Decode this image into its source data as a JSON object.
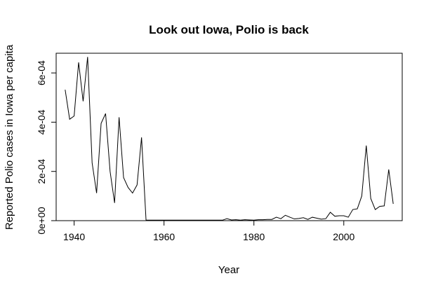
{
  "chart_data": {
    "type": "line",
    "title": "Look out Iowa, Polio is back",
    "xlabel": "Year",
    "ylabel": "Reported Polio cases in Iowa per capita",
    "xlim": [
      1936,
      2013
    ],
    "ylim": [
      0,
      0.00068
    ],
    "x_ticks": [
      1940,
      1960,
      1980,
      2000
    ],
    "x_tick_labels": [
      "1940",
      "1960",
      "1980",
      "2000"
    ],
    "y_ticks": [
      0,
      0.0002,
      0.0004,
      0.0006
    ],
    "y_tick_labels": [
      "0e+00",
      "2e-04",
      "4e-04",
      "6e-04"
    ],
    "grid": false,
    "legend": "none",
    "line_color": "#000000",
    "series": [
      {
        "x": [
          1938,
          1939,
          1940,
          1941,
          1942,
          1943,
          1944,
          1945,
          1946,
          1947,
          1948,
          1949,
          1950,
          1951,
          1952,
          1953,
          1954,
          1955,
          1956,
          1957,
          1958,
          1959,
          1960,
          1961,
          1962,
          1963,
          1964,
          1965,
          1966,
          1967,
          1968,
          1969,
          1970,
          1971,
          1972,
          1973,
          1974,
          1975,
          1976,
          1977,
          1978,
          1979,
          1980,
          1981,
          1982,
          1983,
          1984,
          1985,
          1986,
          1987,
          1988,
          1989,
          1990,
          1991,
          1992,
          1993,
          1994,
          1995,
          1996,
          1997,
          1998,
          1999,
          2000,
          2001,
          2002,
          2003,
          2004,
          2005,
          2006,
          2007,
          2008,
          2009,
          2010,
          2011
        ],
        "y": [
          0.000532,
          0.000412,
          0.000425,
          0.000643,
          0.000485,
          0.000665,
          0.000235,
          0.000112,
          0.000395,
          0.000435,
          0.0002,
          7.2e-05,
          0.00042,
          0.000175,
          0.000135,
          0.000112,
          0.000145,
          0.000338,
          2e-06,
          2e-06,
          2e-06,
          2e-06,
          2e-06,
          2e-06,
          2e-06,
          2e-06,
          2e-06,
          2e-06,
          2e-06,
          2e-06,
          2e-06,
          2e-06,
          2e-06,
          2e-06,
          2e-06,
          2e-06,
          8e-06,
          3e-06,
          4e-06,
          2e-06,
          4e-06,
          3e-06,
          2e-06,
          4e-06,
          4e-06,
          5e-06,
          5e-06,
          1.4e-05,
          8e-06,
          2.2e-05,
          1.4e-05,
          7e-06,
          9e-06,
          1.2e-05,
          5e-06,
          1.4e-05,
          1e-05,
          6e-06,
          8e-06,
          3.4e-05,
          1.8e-05,
          2e-05,
          2e-05,
          1.4e-05,
          4.5e-05,
          4.8e-05,
          0.0001,
          0.000305,
          9e-05,
          4.5e-05,
          5.8e-05,
          6e-05,
          0.000208,
          6.8e-05
        ]
      }
    ]
  }
}
